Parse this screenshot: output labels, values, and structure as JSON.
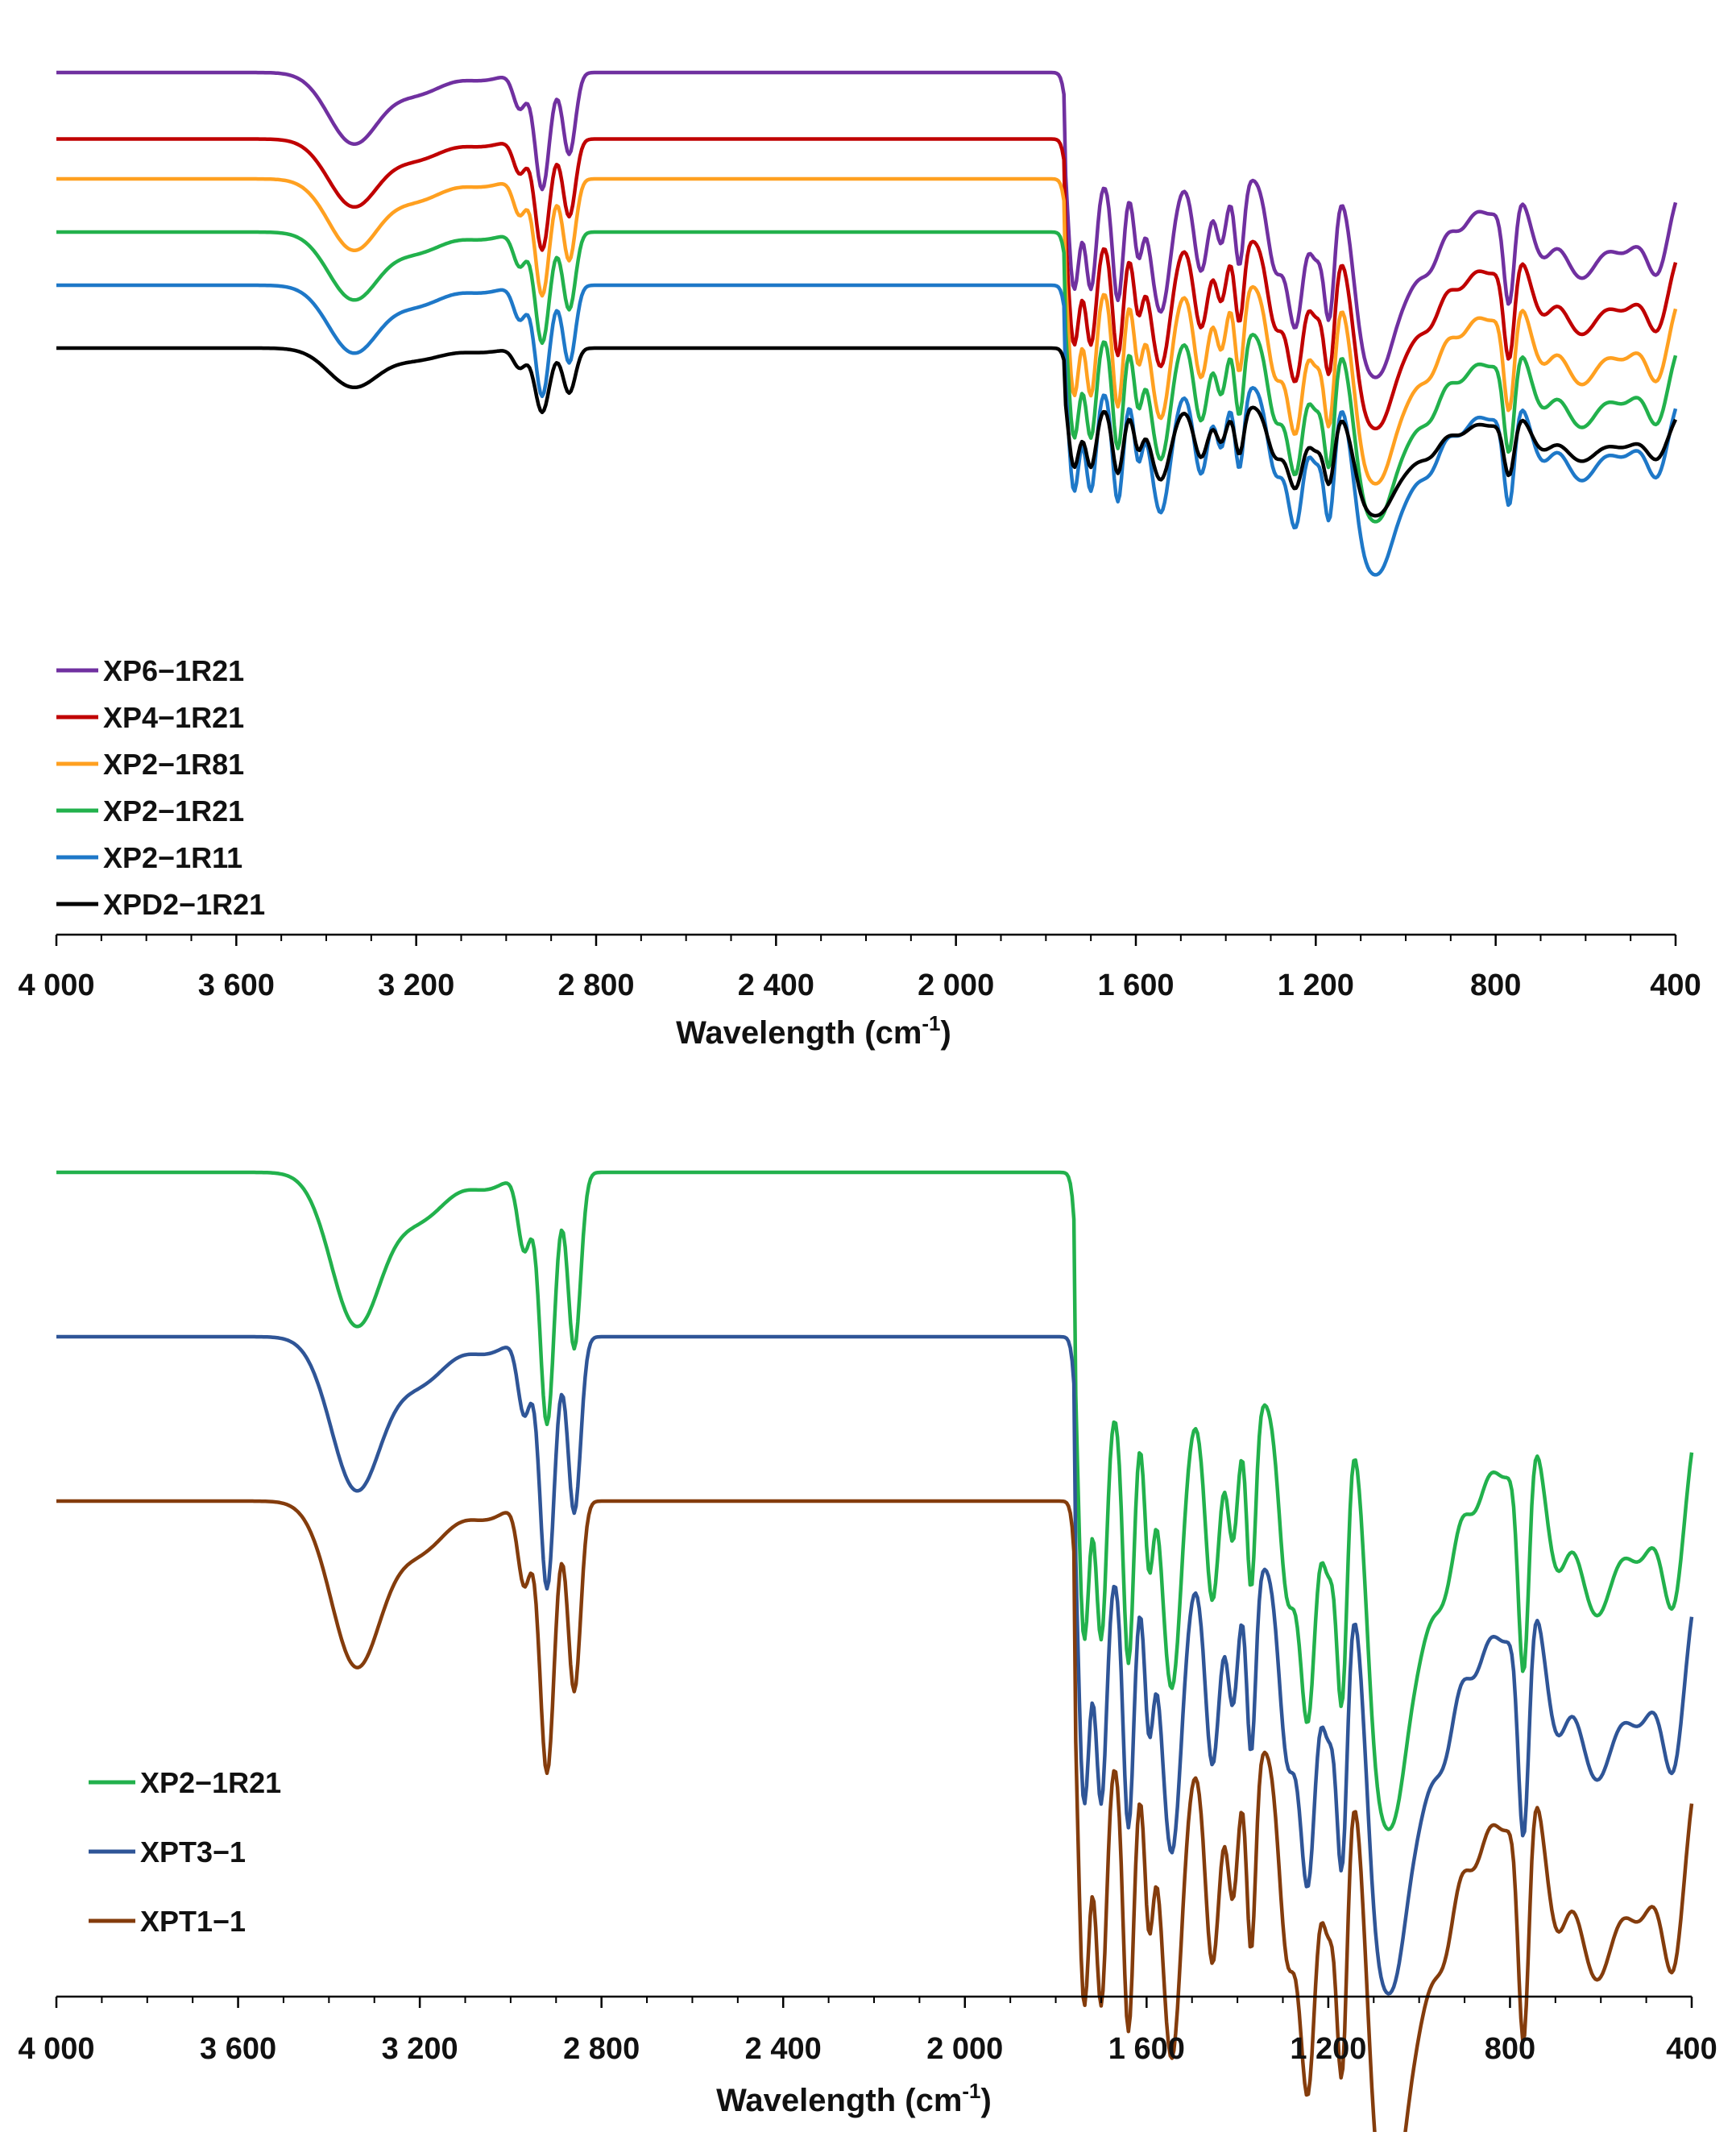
{
  "chart_data": [
    {
      "type": "line",
      "title": "",
      "xlabel": "Wavelength (cm",
      "xlabel_sup": "-1",
      "xlabel_close": ")",
      "xlim": [
        4000,
        400
      ],
      "x_reversed": true,
      "grid": false,
      "legend_position": "bottom-left",
      "x_ticks": [
        "4 000",
        "3 600",
        "3 200",
        "2 800",
        "2 400",
        "2 000",
        "1 600",
        "1 200",
        "800",
        "400"
      ],
      "x_tick_values": [
        4000,
        3600,
        3200,
        2800,
        2400,
        2000,
        1600,
        1200,
        800,
        400
      ],
      "series": [
        {
          "name": "XP6−1R21",
          "color": "#7030A0",
          "baseline": 0.0,
          "depth": 1.0
        },
        {
          "name": "XP4−1R21",
          "color": "#C00000",
          "baseline": 0.55,
          "depth": 0.95
        },
        {
          "name": "XP2−1R81",
          "color": "#FFA020",
          "baseline": 0.88,
          "depth": 1.0
        },
        {
          "name": "XP2−1R21",
          "color": "#22B14C",
          "baseline": 1.32,
          "depth": 0.95
        },
        {
          "name": "XP2−1R11",
          "color": "#1E78C8",
          "baseline": 1.76,
          "depth": 0.95
        },
        {
          "name": "XPD2−1R21",
          "color": "#000000",
          "baseline": 2.28,
          "depth": 0.55
        }
      ]
    },
    {
      "type": "line",
      "title": "",
      "xlabel": "Wavelength (cm",
      "xlabel_sup": "-1",
      "xlabel_close": ")",
      "xlim": [
        4000,
        400
      ],
      "x_reversed": true,
      "grid": false,
      "legend_position": "bottom-left",
      "x_ticks": [
        "4 000",
        "3 600",
        "3 200",
        "2 800",
        "2 400",
        "2 000",
        "1 600",
        "1 200",
        "800",
        "400"
      ],
      "x_tick_values": [
        4000,
        3600,
        3200,
        2800,
        2400,
        2000,
        1600,
        1200,
        800,
        400
      ],
      "series": [
        {
          "name": "XP2−1R21",
          "color": "#22B14C",
          "baseline": 0.0,
          "depth": 1.25
        },
        {
          "name": "XPT3−1",
          "color": "#2F5597",
          "baseline": 0.85,
          "depth": 1.25
        },
        {
          "name": "XPT1−1",
          "color": "#843C0C",
          "baseline": 1.7,
          "depth": 1.35
        }
      ]
    }
  ]
}
